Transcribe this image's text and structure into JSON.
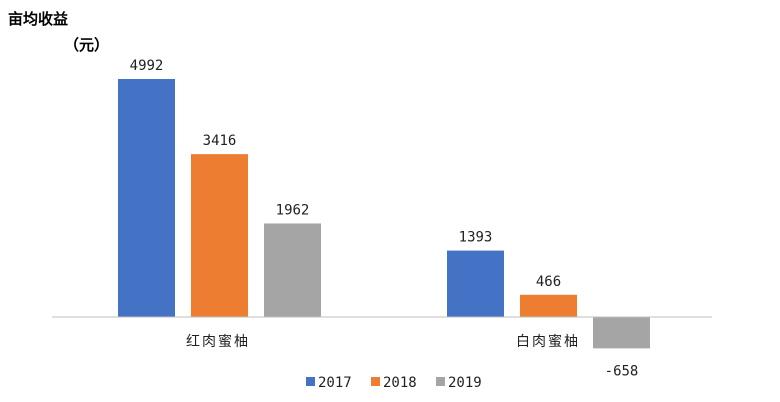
{
  "chart_data": {
    "type": "bar",
    "ylabel": "亩均收益",
    "yunit": "（元）",
    "categories": [
      "红肉蜜柚",
      "白肉蜜柚"
    ],
    "series": [
      {
        "name": "2017",
        "color": "#4472C4",
        "values": [
          4992,
          1393
        ]
      },
      {
        "name": "2018",
        "color": "#ED7D31",
        "values": [
          3416,
          466
        ]
      },
      {
        "name": "2019",
        "color": "#A5A5A5",
        "values": [
          1962,
          -658
        ]
      }
    ],
    "legend_position": "bottom",
    "grid": false
  }
}
